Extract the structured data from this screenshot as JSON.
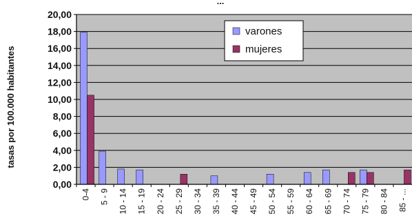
{
  "chart_data": {
    "type": "bar",
    "title": "...",
    "title_note": "top of title is cropped; remaining visible text is illegible",
    "ylabel": "tasas por 100.000 habitantes",
    "xlabel": "",
    "ylim": [
      0,
      20
    ],
    "yticks": [
      "0,00",
      "2,00",
      "4,00",
      "6,00",
      "8,00",
      "10,00",
      "12,00",
      "14,00",
      "16,00",
      "18,00",
      "20,00"
    ],
    "grid": true,
    "legend_position": "top-right",
    "categories": [
      "0-4",
      "5 - 9",
      "10 - 14",
      "15 - 19",
      "20 - 24",
      "25 - 29",
      "30 - 34",
      "35 - 39",
      "40 - 44",
      "45 - 49",
      "50 - 54",
      "55 - 59",
      "60 - 64",
      "65 - 69",
      "70 - 74",
      "75 - 79",
      "80 - 84",
      "85 - ..."
    ],
    "xtick_labels_visible": [
      "0-4",
      "5 - 9",
      "10 - 14",
      "15 - 19",
      "20 - 24",
      "25 - 29",
      "30 - 34",
      "35 - 39",
      "40 - 44",
      "45 - 49",
      "50 - 54",
      "55 - 59",
      "60 - 64",
      "65 - 69",
      "70 - 74",
      "75 - 79",
      "80 - 84",
      "85 - ..."
    ],
    "series": [
      {
        "name": "varones",
        "color": "#9999ff",
        "values": [
          17.9,
          3.9,
          1.8,
          1.7,
          0,
          0,
          0,
          1.0,
          0,
          0,
          1.2,
          0,
          1.4,
          1.7,
          0,
          1.7,
          0,
          0
        ]
      },
      {
        "name": "mujeres",
        "color": "#993366",
        "values": [
          10.5,
          0,
          0,
          0,
          0,
          1.2,
          0,
          0,
          0,
          0,
          0,
          0,
          0,
          0,
          1.4,
          1.4,
          0,
          1.7
        ]
      }
    ],
    "plot_background": "#c0c0c0",
    "gridline_color": "#000000"
  }
}
